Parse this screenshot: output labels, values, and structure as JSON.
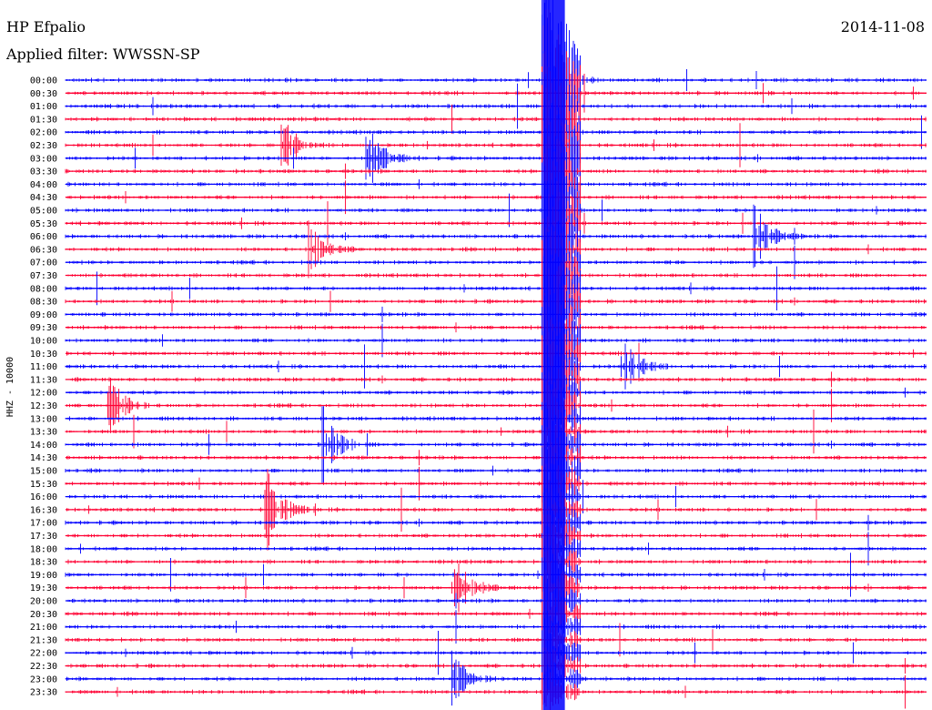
{
  "header": {
    "station": "HP Efpalio",
    "date": "2014-11-08",
    "filter": "Applied filter: WWSSN-SP"
  },
  "channel_label": "HHZ - 10000",
  "colors": {
    "odd_rows": "#0000ff",
    "even_rows": "#ff0033",
    "background": "#ffffff"
  },
  "chart_data": {
    "type": "helicorder",
    "row_labels": [
      "00:00",
      "00:30",
      "01:00",
      "01:30",
      "02:00",
      "02:30",
      "03:00",
      "03:30",
      "04:00",
      "04:30",
      "05:00",
      "05:30",
      "06:00",
      "06:30",
      "07:00",
      "07:30",
      "08:00",
      "08:30",
      "09:00",
      "09:30",
      "10:00",
      "10:30",
      "11:00",
      "11:30",
      "12:00",
      "12:30",
      "13:00",
      "13:30",
      "14:00",
      "14:30",
      "15:00",
      "15:30",
      "16:00",
      "16:30",
      "17:00",
      "17:30",
      "18:00",
      "18:30",
      "19:00",
      "19:30",
      "20:00",
      "20:30",
      "21:00",
      "21:30",
      "22:00",
      "22:30",
      "23:00",
      "23:30"
    ],
    "row_minutes": 30,
    "main_event": {
      "row_start": "00:00",
      "minute_offset": 16.7,
      "description": "large event with long coda through 23:30"
    },
    "events": [
      {
        "row": "00:00",
        "minute": 16.7,
        "amp": 1.0
      },
      {
        "row": "02:30",
        "minute": 7.5,
        "amp": 0.6
      },
      {
        "row": "03:00",
        "minute": 10.5,
        "amp": 0.7
      },
      {
        "row": "06:00",
        "minute": 24.0,
        "amp": 0.7
      },
      {
        "row": "06:30",
        "minute": 8.5,
        "amp": 0.5
      },
      {
        "row": "11:00",
        "minute": 19.5,
        "amp": 0.6
      },
      {
        "row": "12:30",
        "minute": 1.5,
        "amp": 0.6
      },
      {
        "row": "14:00",
        "minute": 9.0,
        "amp": 0.7
      },
      {
        "row": "16:30",
        "minute": 7.0,
        "amp": 0.8
      },
      {
        "row": "19:30",
        "minute": 13.5,
        "amp": 0.8
      },
      {
        "row": "23:00",
        "minute": 13.5,
        "amp": 0.5
      }
    ]
  }
}
